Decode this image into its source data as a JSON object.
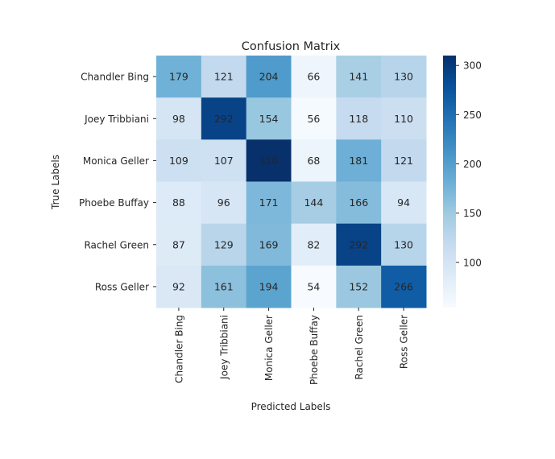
{
  "chart_data": {
    "type": "heatmap",
    "title": "Confusion Matrix",
    "xlabel": "Predicted Labels",
    "ylabel": "True Labels",
    "x_categories": [
      "Chandler Bing",
      "Joey Tribbiani",
      "Monica Geller",
      "Phoebe Buffay",
      "Rachel Green",
      "Ross Geller"
    ],
    "y_categories": [
      "Chandler Bing",
      "Joey Tribbiani",
      "Monica Geller",
      "Phoebe Buffay",
      "Rachel Green",
      "Ross Geller"
    ],
    "values": [
      [
        179,
        121,
        204,
        66,
        141,
        130
      ],
      [
        98,
        292,
        154,
        56,
        118,
        110
      ],
      [
        109,
        107,
        310,
        68,
        181,
        121
      ],
      [
        88,
        96,
        171,
        144,
        166,
        94
      ],
      [
        87,
        129,
        169,
        82,
        292,
        130
      ],
      [
        92,
        161,
        194,
        54,
        152,
        266
      ]
    ],
    "colormap": "Blues",
    "color_range": [
      54,
      310
    ],
    "colorbar_ticks": [
      100,
      150,
      200,
      250,
      300
    ],
    "annotations": true,
    "grid": false,
    "legend": "colorbar-right"
  }
}
